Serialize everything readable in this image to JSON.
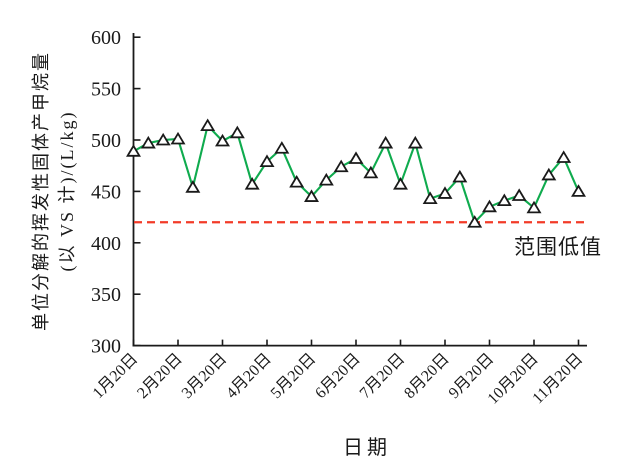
{
  "chart_data": {
    "type": "line",
    "title": "",
    "xlabel": "日期",
    "ylabel_line1": "单位分解的挥发性固体产甲烷量",
    "ylabel_line2": "(以 VS 计)/(L/kg)",
    "x_tick_labels": [
      "1月20日",
      "2月20日",
      "3月20日",
      "4月20日",
      "5月20日",
      "6月20日",
      "7月20日",
      "8月20日",
      "9月20日",
      "10月20日",
      "11月20日"
    ],
    "x_ticks_every_n_points": 3,
    "y_ticks": [
      300,
      350,
      400,
      450,
      500,
      550,
      600
    ],
    "ylim": [
      300,
      600
    ],
    "grid": false,
    "legend": "none",
    "series": [
      {
        "name": "单位分解的挥发性固体产甲烷量",
        "marker": "triangle-up",
        "marker_fill": "#ffffff",
        "marker_stroke": "#1a1a1a",
        "line_color": "#0fab4e",
        "values": [
          489,
          497,
          500,
          501,
          454,
          514,
          499,
          507,
          457,
          479,
          492,
          459,
          445,
          461,
          474,
          482,
          468,
          497,
          457,
          497,
          443,
          448,
          464,
          420,
          435,
          441,
          446,
          434,
          466,
          483,
          450
        ]
      }
    ],
    "reference_line": {
      "value": 420,
      "label": "范围低值",
      "color": "#f23b28",
      "style": "dashed"
    }
  },
  "colors": {
    "axis": "#1a1a1a",
    "background": "#ffffff",
    "series_green": "#0fab4e",
    "reference_red": "#f23b28",
    "text": "#1a1a1a"
  }
}
